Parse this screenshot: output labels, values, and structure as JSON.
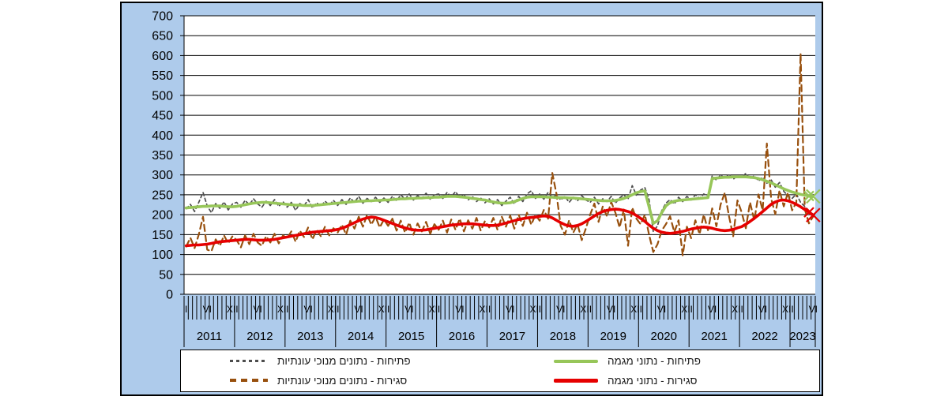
{
  "chart_data": {
    "type": "line",
    "title": "",
    "x_unit": "months",
    "x_start": "2011-I",
    "x_end": "2023-VI",
    "ylim": [
      0,
      700
    ],
    "y_tick_step": 50,
    "grid": "horizontal",
    "background_color": "#AECBEB",
    "plot_background": "#FFFFFF",
    "years": [
      {
        "label": "2011",
        "months": 12
      },
      {
        "label": "2012",
        "months": 12
      },
      {
        "label": "2013",
        "months": 12
      },
      {
        "label": "2014",
        "months": 12
      },
      {
        "label": "2015",
        "months": 12
      },
      {
        "label": "2016",
        "months": 12
      },
      {
        "label": "2017",
        "months": 12
      },
      {
        "label": "2018",
        "months": 12
      },
      {
        "label": "2019",
        "months": 12
      },
      {
        "label": "2020",
        "months": 12
      },
      {
        "label": "2021",
        "months": 12
      },
      {
        "label": "2022",
        "months": 12
      },
      {
        "label": "2023",
        "months": 6
      }
    ],
    "month_tick_labels": [
      {
        "i": 0,
        "t": "I"
      },
      {
        "i": 5,
        "t": "VI"
      },
      {
        "i": 11,
        "t": "XII"
      },
      {
        "i": 17,
        "t": "VI"
      },
      {
        "i": 23,
        "t": "XII"
      },
      {
        "i": 29,
        "t": "VI"
      },
      {
        "i": 35,
        "t": "XII"
      },
      {
        "i": 41,
        "t": "VI"
      },
      {
        "i": 47,
        "t": "XII"
      },
      {
        "i": 53,
        "t": "VI"
      },
      {
        "i": 59,
        "t": "XII"
      },
      {
        "i": 65,
        "t": "VI"
      },
      {
        "i": 71,
        "t": "XII"
      },
      {
        "i": 77,
        "t": "VI"
      },
      {
        "i": 83,
        "t": "XII"
      },
      {
        "i": 89,
        "t": "VI"
      },
      {
        "i": 95,
        "t": "XII"
      },
      {
        "i": 101,
        "t": "VI"
      },
      {
        "i": 107,
        "t": "XII"
      },
      {
        "i": 113,
        "t": "VI"
      },
      {
        "i": 119,
        "t": "XII"
      },
      {
        "i": 125,
        "t": "VI"
      },
      {
        "i": 131,
        "t": "XII"
      },
      {
        "i": 137,
        "t": "VI"
      },
      {
        "i": 143,
        "t": "XII"
      },
      {
        "i": 149,
        "t": "VI"
      }
    ],
    "series": [
      {
        "name": "פתיחות - נתונים מנוכי עונתיות",
        "style": "dashed",
        "color": "#4D4D4D",
        "width": 1.7,
        "dash": "4 3.5",
        "values": [
          215,
          226,
          208,
          231,
          256,
          222,
          205,
          228,
          216,
          232,
          212,
          227,
          231,
          219,
          236,
          225,
          240,
          227,
          219,
          234,
          223,
          238,
          221,
          233,
          219,
          231,
          211,
          228,
          222,
          238,
          217,
          230,
          221,
          234,
          224,
          236,
          223,
          238,
          226,
          242,
          231,
          246,
          229,
          241,
          233,
          244,
          231,
          242,
          231,
          246,
          235,
          250,
          239,
          252,
          237,
          248,
          241,
          254,
          239,
          250,
          252,
          241,
          256,
          245,
          258,
          243,
          250,
          237,
          246,
          233,
          242,
          230,
          240,
          227,
          238,
          223,
          234,
          244,
          227,
          246,
          233,
          252,
          260,
          241,
          252,
          239,
          256,
          243,
          250,
          237,
          246,
          231,
          244,
          235,
          248,
          237,
          231,
          244,
          227,
          240,
          233,
          246,
          229,
          242,
          250,
          239,
          273,
          249,
          262,
          268,
          238,
          158,
          172,
          210,
          229,
          238,
          227,
          244,
          233,
          246,
          237,
          250,
          241,
          252,
          247,
          298,
          287,
          300,
          291,
          302,
          289,
          298,
          293,
          304,
          290,
          298,
          285,
          294,
          279,
          288,
          269,
          281,
          259,
          247,
          241,
          252,
          231,
          221,
          209,
          201
        ]
      },
      {
        "name": "סגירות - נתונים  מנוכי עונתיות",
        "style": "dashed",
        "color": "#98500E",
        "width": 2.2,
        "dash": "8 5",
        "values": [
          120,
          142,
          116,
          150,
          195,
          112,
          108,
          138,
          122,
          148,
          128,
          146,
          136,
          118,
          148,
          126,
          152,
          130,
          122,
          146,
          130,
          152,
          128,
          148,
          141,
          158,
          132,
          160,
          144,
          168,
          138,
          162,
          146,
          170,
          148,
          166,
          155,
          175,
          150,
          185,
          165,
          195,
          170,
          200,
          175,
          195,
          168,
          188,
          172,
          190,
          160,
          185,
          155,
          180,
          150,
          178,
          158,
          182,
          152,
          176,
          162,
          185,
          155,
          188,
          162,
          190,
          158,
          186,
          165,
          192,
          160,
          184,
          168,
          192,
          162,
          195,
          170,
          198,
          165,
          200,
          172,
          205,
          175,
          200,
          185,
          212,
          190,
          305,
          252,
          172,
          150,
          186,
          155,
          176,
          136,
          166,
          200,
          228,
          182,
          221,
          196,
          232,
          205,
          168,
          213,
          122,
          218,
          190,
          176,
          200,
          150,
          106,
          126,
          160,
          176,
          196,
          156,
          186,
          98,
          170,
          141,
          186,
          151,
          200,
          161,
          216,
          171,
          226,
          255,
          196,
          146,
          236,
          206,
          166,
          231,
          186,
          251,
          211,
          379,
          241,
          201,
          261,
          221,
          256,
          211,
          231,
          605,
          214,
          178,
          196
        ]
      },
      {
        "name": "פתיחות - נתוני מגמה",
        "style": "solid",
        "color": "#97C659",
        "width": 3.6,
        "end_markers": "x",
        "values": [
          217,
          218,
          219,
          220,
          221,
          221,
          222,
          222,
          222,
          221,
          220,
          220,
          221,
          223,
          225,
          227,
          229,
          230,
          231,
          231,
          230,
          229,
          228,
          227,
          226,
          225,
          224,
          224,
          223,
          223,
          223,
          224,
          225,
          226,
          227,
          228,
          229,
          230,
          231,
          232,
          233,
          234,
          234,
          235,
          235,
          236,
          236,
          237,
          237,
          238,
          239,
          240,
          240,
          241,
          241,
          242,
          242,
          243,
          243,
          244,
          244,
          245,
          246,
          246,
          246,
          245,
          244,
          243,
          241,
          240,
          238,
          237,
          234,
          232,
          230,
          229,
          229,
          230,
          233,
          237,
          241,
          244,
          245,
          245,
          245,
          245,
          244,
          244,
          243,
          243,
          243,
          242,
          242,
          241,
          240,
          239,
          238,
          237,
          236,
          235,
          235,
          235,
          236,
          238,
          241,
          245,
          250,
          255,
          258,
          260,
          220,
          178,
          185,
          205,
          222,
          230,
          234,
          236,
          237,
          238,
          239,
          240,
          241,
          242,
          243,
          291,
          292,
          293,
          294,
          294,
          295,
          295,
          295,
          295,
          294,
          293,
          291,
          288,
          284,
          280,
          275,
          270,
          265,
          261,
          257,
          254,
          251,
          249,
          247,
          246
        ]
      },
      {
        "name": "סגירות - נתוני מגמה",
        "style": "solid",
        "color": "#E60000",
        "width": 3.6,
        "end_markers": "x",
        "values": [
          122,
          123,
          124,
          124,
          125,
          126,
          128,
          130,
          132,
          133,
          134,
          135,
          136,
          137,
          138,
          138,
          137,
          136,
          136,
          136,
          137,
          138,
          140,
          142,
          144,
          146,
          148,
          150,
          152,
          154,
          156,
          157,
          158,
          159,
          160,
          161,
          163,
          166,
          170,
          175,
          180,
          185,
          189,
          192,
          194,
          193,
          190,
          186,
          182,
          178,
          174,
          170,
          167,
          164,
          162,
          161,
          161,
          162,
          164,
          166,
          168,
          170,
          172,
          174,
          175,
          176,
          177,
          177,
          177,
          176,
          175,
          174,
          173,
          173,
          174,
          176,
          179,
          182,
          185,
          188,
          190,
          192,
          193,
          194,
          196,
          197,
          196,
          192,
          186,
          180,
          175,
          172,
          171,
          173,
          177,
          183,
          190,
          197,
          203,
          208,
          211,
          213,
          214,
          213,
          211,
          208,
          204,
          198,
          191,
          183,
          174,
          166,
          160,
          156,
          154,
          153,
          154,
          156,
          158,
          161,
          164,
          166,
          168,
          169,
          168,
          166,
          163,
          161,
          160,
          161,
          163,
          167,
          170,
          176,
          183,
          191,
          199,
          208,
          217,
          226,
          232,
          236,
          237,
          235,
          231,
          226,
          220,
          213,
          206,
          199
        ]
      }
    ],
    "legend": {
      "position": "bottom",
      "columns": 2
    }
  }
}
